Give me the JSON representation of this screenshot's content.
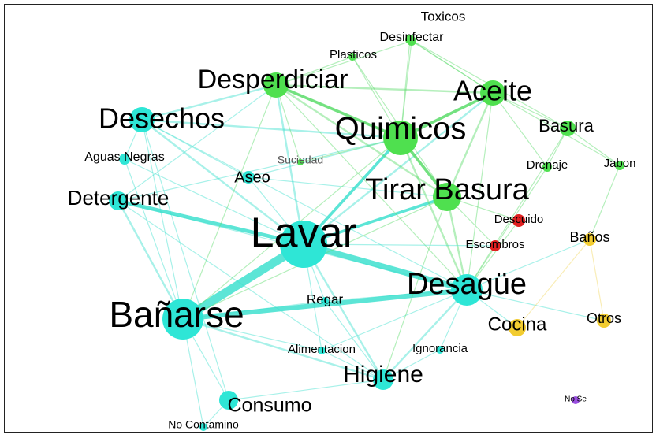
{
  "nodes": [
    {
      "label": "Toxicos"
    },
    {
      "label": "Desinfectar"
    },
    {
      "label": "Plasticos"
    },
    {
      "label": "Desperdiciar"
    },
    {
      "label": "Aceite"
    },
    {
      "label": "Desechos"
    },
    {
      "label": "Quimicos"
    },
    {
      "label": "Basura"
    },
    {
      "label": "Aguas Negras"
    },
    {
      "label": "Suciedad"
    },
    {
      "label": "Drenaje"
    },
    {
      "label": "Jabon"
    },
    {
      "label": "Aseo"
    },
    {
      "label": "Detergente"
    },
    {
      "label": "Tirar Basura"
    },
    {
      "label": "Descuido"
    },
    {
      "label": "Lavar"
    },
    {
      "label": "Baños"
    },
    {
      "label": "Escombros"
    },
    {
      "label": "Desagüe"
    },
    {
      "label": "Regar"
    },
    {
      "label": "Bañarse"
    },
    {
      "label": "Otros"
    },
    {
      "label": "Cocina"
    },
    {
      "label": "Alimentacion"
    },
    {
      "label": "Ignorancia"
    },
    {
      "label": "Higiene"
    },
    {
      "label": "No Se"
    },
    {
      "label": "Consumo"
    },
    {
      "label": "No Contamino"
    }
  ]
}
